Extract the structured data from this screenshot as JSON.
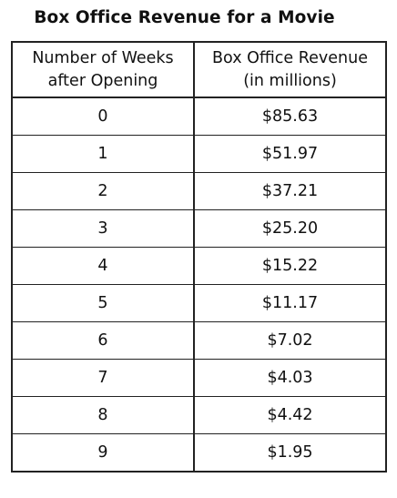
{
  "title": "Box Office Revenue for a Movie",
  "table": {
    "headers": [
      [
        "Number of Weeks",
        "after Opening"
      ],
      [
        "Box Office Revenue",
        "(in millions)"
      ]
    ],
    "rows": [
      [
        "0",
        "$85.63"
      ],
      [
        "1",
        "$51.97"
      ],
      [
        "2",
        "$37.21"
      ],
      [
        "3",
        "$25.20"
      ],
      [
        "4",
        "$15.22"
      ],
      [
        "5",
        "$11.17"
      ],
      [
        "6",
        "$7.02"
      ],
      [
        "7",
        "$4.03"
      ],
      [
        "8",
        "$4.42"
      ],
      [
        "9",
        "$1.95"
      ]
    ]
  },
  "chart_data": {
    "type": "table",
    "title": "Box Office Revenue for a Movie",
    "columns": [
      "Number of Weeks after Opening",
      "Box Office Revenue (in millions)"
    ],
    "x": [
      0,
      1,
      2,
      3,
      4,
      5,
      6,
      7,
      8,
      9
    ],
    "values": [
      85.63,
      51.97,
      37.21,
      25.2,
      15.22,
      11.17,
      7.02,
      4.03,
      4.42,
      1.95
    ]
  }
}
